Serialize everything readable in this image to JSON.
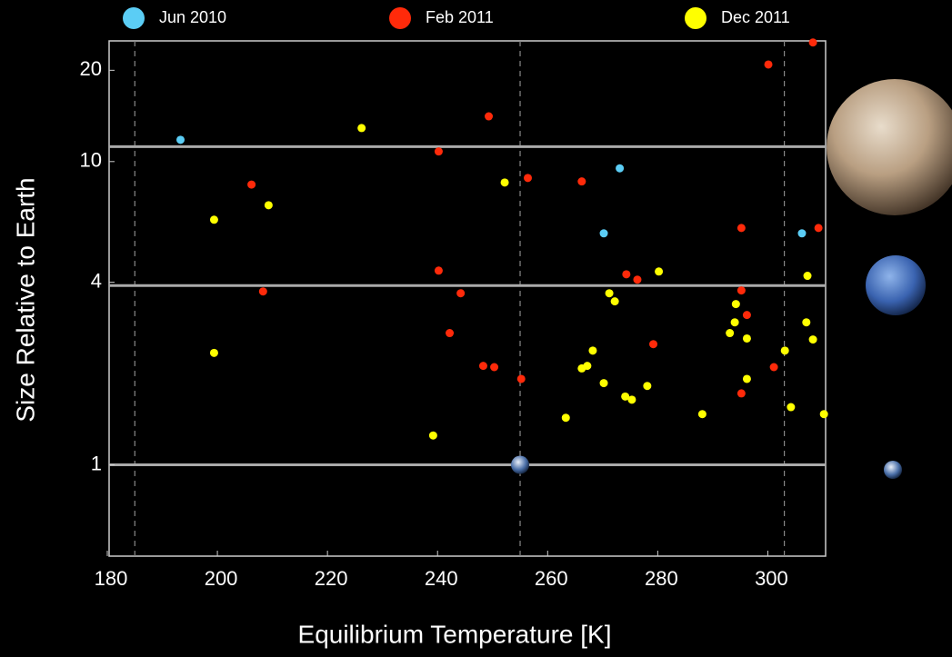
{
  "chart_data": {
    "type": "scatter",
    "xlabel": "Equilibrium Temperature [K]",
    "ylabel": "Size Relative to Earth",
    "xlim": [
      180,
      310.5
    ],
    "xticks": [
      180,
      200,
      220,
      240,
      260,
      280,
      300
    ],
    "ylim": [
      0.5,
      25
    ],
    "yticks": [
      1,
      4,
      10,
      20
    ],
    "yscale": "log",
    "hlines": [
      1,
      3.9,
      11.2
    ],
    "vlines": [
      185,
      255,
      303
    ],
    "series": [
      {
        "name": "Jun 2010",
        "color": "#5bcdf5",
        "x": [
          193.3,
          273.1,
          270.2,
          306.2
        ],
        "values": [
          11.8,
          9.5,
          5.8,
          5.8
        ]
      },
      {
        "name": "Feb 2011",
        "color": "#ff2a0a",
        "x": [
          206.2,
          208.3,
          240.2,
          240.2,
          249.3,
          244.2,
          242.2,
          248.3,
          250.3,
          255.2,
          256.4,
          266.2,
          274.3,
          276.3,
          279.2,
          295.2,
          295.2,
          296.2,
          295.2,
          301.1,
          300.1,
          308.2,
          309.2
        ],
        "values": [
          8.4,
          3.73,
          10.8,
          4.37,
          14.1,
          3.68,
          2.72,
          2.12,
          2.1,
          1.92,
          8.83,
          8.6,
          4.25,
          4.08,
          2.5,
          6.04,
          3.76,
          3.12,
          1.72,
          2.1,
          20.9,
          24.7,
          6.04
        ]
      },
      {
        "name": "Dec 2011",
        "color": "#ffff00",
        "x": [
          226.2,
          199.4,
          209.3,
          199.4,
          252.2,
          239.2,
          263.3,
          271.2,
          272.2,
          268.2,
          266.2,
          267.2,
          270.2,
          274.1,
          275.3,
          278.1,
          280.2,
          288.1,
          293.1,
          294.0,
          294.2,
          296.2,
          296.2,
          303.1,
          304.2,
          307.0,
          307.2,
          308.2,
          310.2
        ],
        "values": [
          12.9,
          6.43,
          7.18,
          2.34,
          8.53,
          1.25,
          1.43,
          3.68,
          3.46,
          2.38,
          2.08,
          2.12,
          1.86,
          1.68,
          1.64,
          1.82,
          4.34,
          1.47,
          2.72,
          2.95,
          3.39,
          2.61,
          1.92,
          2.38,
          1.55,
          2.95,
          4.2,
          2.59,
          1.47
        ]
      }
    ]
  }
}
